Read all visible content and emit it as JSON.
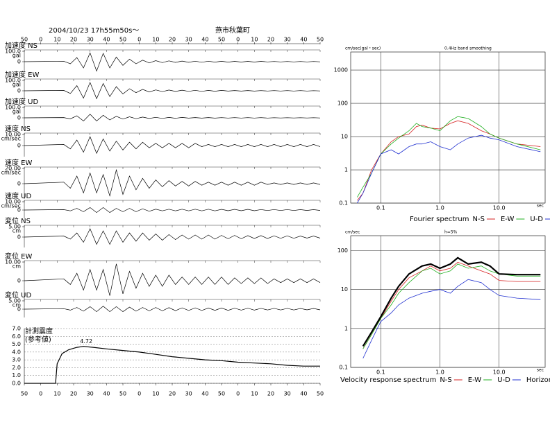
{
  "header": {
    "datetime": "2004/10/23  17h55m50s～",
    "station": "燕市秋葉町"
  },
  "chart_data": [
    {
      "type": "waveform",
      "xlim": [
        0,
        180
      ],
      "xticks": [
        {
          "value": 0,
          "label": "50"
        },
        {
          "value": 10,
          "label": "0"
        },
        {
          "value": 20,
          "label": "10"
        },
        {
          "value": 30,
          "label": "20"
        },
        {
          "value": 40,
          "label": "30"
        },
        {
          "value": 50,
          "label": "40"
        },
        {
          "value": 60,
          "label": "50"
        },
        {
          "value": 70,
          "label": "0"
        },
        {
          "value": 80,
          "label": "10"
        },
        {
          "value": 90,
          "label": "20"
        },
        {
          "value": 100,
          "label": "30"
        },
        {
          "value": 110,
          "label": "40"
        },
        {
          "value": 120,
          "label": "50"
        },
        {
          "value": 130,
          "label": "0"
        },
        {
          "value": 140,
          "label": "10"
        },
        {
          "value": 150,
          "label": "20"
        },
        {
          "value": 160,
          "label": "30"
        },
        {
          "value": 170,
          "label": "40"
        },
        {
          "value": 180,
          "label": "50"
        }
      ],
      "x": [
        0,
        24,
        28,
        32,
        36,
        40,
        44,
        48,
        52,
        56,
        60,
        64,
        68,
        72,
        76,
        80,
        84,
        88,
        92,
        96,
        100,
        104,
        108,
        112,
        116,
        120,
        124,
        128,
        132,
        136,
        140,
        144,
        148,
        152,
        156,
        160,
        164,
        168,
        172,
        176,
        180
      ],
      "panels": [
        {
          "name": "加速度 NS",
          "unit": "gal",
          "ylim": [
            -100,
            100
          ],
          "yticks": [
            {
              "value": 100,
              "label": "100.0"
            },
            0
          ],
          "values": [
            0,
            5,
            -20,
            40,
            -60,
            85,
            -90,
            80,
            -60,
            45,
            -35,
            25,
            -20,
            15,
            -12,
            10,
            -9,
            8,
            -7,
            6,
            -6,
            5,
            -5,
            5,
            -4,
            4,
            -4,
            3,
            -3,
            3,
            -3,
            3,
            -2,
            2,
            -2,
            2,
            -2,
            2,
            -2,
            2,
            -1
          ]
        },
        {
          "name": "加速度 EW",
          "unit": "gal",
          "ylim": [
            -100,
            100
          ],
          "yticks": [
            {
              "value": 100,
              "label": "100.0"
            },
            0
          ],
          "values": [
            0,
            4,
            -25,
            50,
            -70,
            80,
            -75,
            70,
            -55,
            40,
            -30,
            20,
            -18,
            14,
            -11,
            9,
            -8,
            7,
            -6,
            6,
            -5,
            5,
            -5,
            4,
            -4,
            4,
            -3,
            3,
            -3,
            3,
            -3,
            2,
            -2,
            2,
            -2,
            2,
            -2,
            2,
            -2,
            1,
            -1
          ]
        },
        {
          "name": "加速度 UD",
          "unit": "gal",
          "ylim": [
            -100,
            100
          ],
          "yticks": [
            {
              "value": 100,
              "label": "100.0"
            },
            0
          ],
          "values": [
            0,
            3,
            -10,
            20,
            -30,
            35,
            -30,
            25,
            -20,
            15,
            -12,
            10,
            -8,
            7,
            -6,
            5,
            -5,
            4,
            -4,
            4,
            -3,
            3,
            -3,
            3,
            -3,
            2,
            -2,
            2,
            -2,
            2,
            -2,
            2,
            -2,
            1,
            -1,
            1,
            -1,
            1,
            -1,
            1,
            -1
          ]
        },
        {
          "name": "速度 NS",
          "unit": "cm/sec",
          "ylim": [
            -10,
            10
          ],
          "yticks": [
            {
              "value": 10,
              "label": "10.00"
            },
            0
          ],
          "values": [
            0,
            1,
            -3,
            5,
            -6,
            8,
            -7,
            6,
            -5,
            4,
            -4,
            3,
            -3,
            3,
            -2,
            2,
            -2,
            2,
            -2,
            2,
            -2,
            2,
            -1,
            1,
            -1,
            1,
            -1,
            1,
            -1,
            1,
            -1,
            1,
            -1,
            1,
            -1,
            1,
            -1,
            1,
            -1,
            1,
            -1
          ]
        },
        {
          "name": "速度 EW",
          "unit": "cm/sec",
          "ylim": [
            -20,
            20
          ],
          "yticks": [
            {
              "value": 20,
              "label": "20.00"
            },
            0
          ],
          "values": [
            0,
            2,
            -6,
            10,
            -12,
            14,
            -12,
            12,
            -16,
            18,
            -14,
            10,
            -8,
            7,
            -6,
            5,
            -4,
            4,
            -3,
            3,
            -3,
            3,
            -2,
            2,
            -2,
            2,
            -2,
            2,
            -2,
            2,
            -2,
            2,
            -1,
            1,
            -1,
            1,
            -1,
            1,
            -1,
            1,
            -1
          ]
        },
        {
          "name": "速度 UD",
          "unit": "cm/sec",
          "ylim": [
            -10,
            10
          ],
          "yticks": [
            {
              "value": 10,
              "label": "10.00"
            },
            0
          ],
          "values": [
            0,
            0.5,
            -1,
            2,
            -2,
            3,
            -3,
            3,
            -3,
            2,
            -2,
            2,
            -2,
            1.5,
            -1.5,
            1,
            -1,
            1,
            -1,
            1,
            -1,
            1,
            -1,
            1,
            -1,
            0.8,
            -0.8,
            0.8,
            -0.8,
            0.8,
            -0.8,
            0.6,
            -0.6,
            0.6,
            -0.6,
            0.6,
            -0.6,
            0.5,
            -0.5,
            0.5,
            -0.5
          ]
        },
        {
          "name": "変位 NS",
          "unit": "cm",
          "ylim": [
            -5,
            5
          ],
          "yticks": [
            {
              "value": 5,
              "label": "5.00"
            },
            0
          ],
          "values": [
            0,
            0.5,
            -1,
            2,
            -2.5,
            4,
            -3.5,
            3,
            -3.5,
            3,
            -2.5,
            2,
            -2,
            2,
            -1.5,
            1.5,
            -1.5,
            1.2,
            -1.2,
            1,
            -1,
            1,
            -1,
            1,
            -1,
            0.8,
            -0.8,
            0.8,
            -0.8,
            0.7,
            -0.7,
            0.7,
            -0.7,
            0.6,
            -0.6,
            0.6,
            -0.6,
            0.5,
            -0.5,
            0.5,
            -0.5
          ]
        },
        {
          "name": "変位 EW",
          "unit": "cm",
          "ylim": [
            -10,
            10
          ],
          "yticks": [
            {
              "value": 10,
              "label": "10.00"
            },
            0
          ],
          "values": [
            0,
            1,
            -2,
            4,
            -5,
            6,
            -5,
            6,
            -8,
            9,
            -7,
            5,
            -4,
            4,
            -3,
            3,
            -3,
            3,
            -2,
            2,
            -2,
            2,
            -2,
            2,
            -2,
            2,
            -2,
            1.5,
            -1.5,
            1.5,
            -1.5,
            1.5,
            -1.5,
            1,
            -1,
            1,
            -1,
            1,
            -1,
            1,
            -1
          ]
        },
        {
          "name": "変位 UD",
          "unit": "cm",
          "ylim": [
            -5,
            5
          ],
          "yticks": [
            {
              "value": 5,
              "label": "5.00"
            },
            0
          ],
          "values": [
            0,
            0.3,
            -0.6,
            1,
            -1.2,
            1.5,
            -1.5,
            1.8,
            -1.5,
            1.5,
            -1.5,
            1.2,
            -1.2,
            1,
            -1,
            1,
            -1,
            0.9,
            -0.9,
            0.8,
            -0.8,
            0.8,
            -0.8,
            0.7,
            -0.7,
            0.7,
            -0.7,
            0.6,
            -0.6,
            0.6,
            -0.6,
            0.5,
            -0.5,
            0.5,
            -0.5,
            0.5,
            -0.5,
            0.4,
            -0.4,
            0.4,
            -0.4
          ]
        }
      ]
    },
    {
      "type": "line",
      "title": "計測震度",
      "subtitle": "(参考値)",
      "xlim": [
        0,
        180
      ],
      "ylim": [
        0,
        7
      ],
      "grid": true,
      "xticks": [
        {
          "value": 0,
          "label": "50"
        },
        {
          "value": 10,
          "label": "0"
        },
        {
          "value": 20,
          "label": "10"
        },
        {
          "value": 30,
          "label": "20"
        },
        {
          "value": 40,
          "label": "30"
        },
        {
          "value": 50,
          "label": "40"
        },
        {
          "value": 60,
          "label": "50"
        },
        {
          "value": 70,
          "label": "0"
        },
        {
          "value": 80,
          "label": "10"
        },
        {
          "value": 90,
          "label": "20"
        },
        {
          "value": 100,
          "label": "30"
        },
        {
          "value": 110,
          "label": "40"
        },
        {
          "value": 120,
          "label": "50"
        },
        {
          "value": 130,
          "label": "0"
        },
        {
          "value": 140,
          "label": "10"
        },
        {
          "value": 150,
          "label": "20"
        },
        {
          "value": 160,
          "label": "30"
        },
        {
          "value": 170,
          "label": "40"
        },
        {
          "value": 180,
          "label": "50"
        }
      ],
      "yticks": [
        {
          "value": 0,
          "label": "0.0"
        },
        {
          "value": 1,
          "label": "1.0"
        },
        {
          "value": 2,
          "label": "2.0"
        },
        {
          "value": 3,
          "label": "3.0"
        },
        {
          "value": 4,
          "label": "4.0"
        },
        {
          "value": 5,
          "label": "5.0"
        },
        {
          "value": 6,
          "label": "6.0"
        },
        {
          "value": 7,
          "label": "7.0"
        }
      ],
      "x": [
        0,
        19,
        20,
        23,
        27,
        32,
        36,
        42,
        50,
        60,
        70,
        80,
        90,
        100,
        110,
        120,
        130,
        140,
        150,
        160,
        170,
        180
      ],
      "values": [
        0,
        0,
        2.5,
        3.8,
        4.3,
        4.6,
        4.72,
        4.6,
        4.4,
        4.2,
        4.0,
        3.7,
        3.4,
        3.2,
        3.0,
        2.9,
        2.7,
        2.6,
        2.5,
        2.3,
        2.2,
        2.2
      ],
      "value_labels": [
        null,
        null,
        null,
        null,
        null,
        null,
        "4.72",
        null,
        null,
        null,
        null,
        null,
        null,
        null,
        null,
        null,
        null,
        null,
        null,
        null,
        null,
        null
      ]
    },
    {
      "type": "line",
      "log": true,
      "grid": true,
      "legend_title": "Fourier spectrum",
      "y_unit": "cm/sec(gal・sec)",
      "note": "0.4Hz band smoothing",
      "xlabel": "sec",
      "xlim": [
        0.031,
        60
      ],
      "ylim": [
        0.1,
        3500
      ],
      "xticks": [
        0.1,
        {
          "value": 1,
          "label": "1.0"
        },
        {
          "value": 10,
          "label": "10.0"
        }
      ],
      "yticks": [
        0.1,
        1,
        10,
        100,
        1000
      ],
      "x": [
        0.04,
        0.05,
        0.07,
        0.1,
        0.15,
        0.2,
        0.3,
        0.4,
        0.5,
        0.7,
        1,
        1.5,
        2,
        3,
        5,
        7,
        10,
        20,
        50
      ],
      "series": [
        {
          "name": "N-S",
          "color": "#d62020",
          "values": [
            0.12,
            0.2,
            1,
            3,
            7,
            10,
            12,
            20,
            22,
            18,
            17,
            25,
            30,
            25,
            15,
            12,
            9,
            6,
            5
          ]
        },
        {
          "name": "E-W",
          "color": "#20b020",
          "values": [
            0.15,
            0.3,
            0.8,
            3,
            6,
            9,
            15,
            25,
            20,
            18,
            15,
            30,
            40,
            35,
            20,
            12,
            9,
            6,
            4
          ]
        },
        {
          "name": "U-D",
          "color": "#2030d0",
          "values": [
            0.1,
            0.2,
            0.8,
            3,
            4,
            3,
            5,
            6,
            6,
            7,
            5,
            4,
            6,
            9,
            11,
            9,
            8,
            5,
            3.5
          ]
        }
      ]
    },
    {
      "type": "line",
      "log": true,
      "grid": true,
      "legend_title": "Velocity response spectrum",
      "y_unit": "cm/sec",
      "note": "h=5%",
      "xlabel": "sec",
      "xlim": [
        0.031,
        60
      ],
      "ylim": [
        0.1,
        240
      ],
      "xticks": [
        0.1,
        {
          "value": 1,
          "label": "1.0"
        },
        {
          "value": 10,
          "label": "10.0"
        }
      ],
      "yticks": [
        0.1,
        1,
        10,
        100
      ],
      "x": [
        0.05,
        0.07,
        0.1,
        0.15,
        0.2,
        0.3,
        0.5,
        0.7,
        1,
        1.5,
        2,
        3,
        5,
        7,
        10,
        20,
        50
      ],
      "series": [
        {
          "name": "N-S",
          "color": "#d62020",
          "values": [
            0.3,
            0.7,
            1.8,
            5,
            10,
            20,
            30,
            40,
            30,
            35,
            50,
            40,
            30,
            25,
            17,
            16,
            16
          ]
        },
        {
          "name": "E-W",
          "color": "#20b020",
          "values": [
            0.3,
            0.7,
            1.8,
            4,
            8,
            15,
            30,
            35,
            25,
            30,
            45,
            35,
            40,
            30,
            25,
            22,
            22
          ]
        },
        {
          "name": "U-D",
          "color": "#2030d0",
          "values": [
            0.17,
            0.5,
            1.5,
            2.5,
            4,
            6,
            8,
            9,
            10,
            8,
            12,
            18,
            15,
            10,
            7,
            6,
            5.5
          ]
        },
        {
          "name": "Horizon",
          "color": "#000000",
          "values": [
            0.35,
            0.8,
            2,
            6,
            12,
            25,
            40,
            45,
            35,
            45,
            65,
            45,
            50,
            40,
            25,
            24,
            24
          ]
        }
      ]
    }
  ]
}
